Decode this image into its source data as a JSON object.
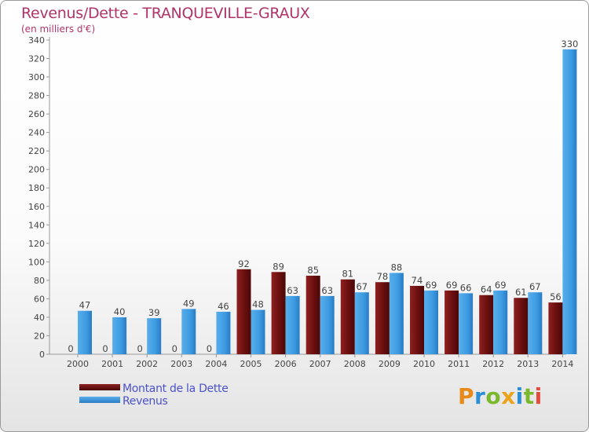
{
  "chart_data": {
    "type": "bar",
    "title": "Revenus/Dette - TRANQUEVILLE-GRAUX",
    "subtitle": "(en milliers d'€)",
    "categories": [
      "2000",
      "2001",
      "2002",
      "2003",
      "2004",
      "2005",
      "2006",
      "2007",
      "2008",
      "2009",
      "2010",
      "2011",
      "2012",
      "2013",
      "2014"
    ],
    "series": [
      {
        "name": "Montant de la Dette",
        "color": "#7a1414",
        "values": [
          0,
          0,
          0,
          0,
          0,
          92,
          89,
          85,
          81,
          78,
          74,
          69,
          64,
          61,
          56
        ]
      },
      {
        "name": "Revenus",
        "color": "#3d9be2",
        "values": [
          47,
          40,
          39,
          49,
          46,
          48,
          63,
          63,
          67,
          88,
          69,
          66,
          69,
          67,
          330
        ]
      }
    ],
    "y_ticks": [
      0,
      20,
      40,
      60,
      80,
      100,
      120,
      140,
      160,
      180,
      200,
      220,
      240,
      260,
      280,
      300,
      320,
      340
    ],
    "ylim": [
      0,
      340
    ],
    "grid": false,
    "legend_position": "bottom-left"
  },
  "legend": [
    {
      "label": "Montant de la Dette"
    },
    {
      "label": "Revenus"
    }
  ],
  "logo": {
    "letters": [
      "P",
      "r",
      "o",
      "x",
      "i",
      "t",
      "i"
    ],
    "colors": [
      "#e88a1a",
      "#2b8fd6",
      "#7ab82e",
      "#e8a41a",
      "#2b8fd6",
      "#7ab82e",
      "#e34c3c"
    ]
  }
}
